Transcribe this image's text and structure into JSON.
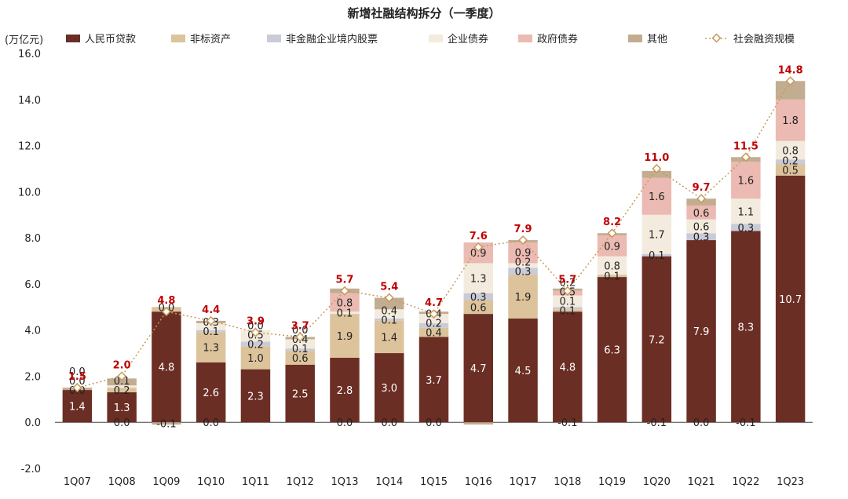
{
  "chart_data": {
    "type": "bar",
    "stacked": true,
    "title": "新增社融结构拆分（一季度）",
    "ylabel": "(万亿元)",
    "ylim": [
      -2.0,
      16.0
    ],
    "yticks": [
      "-2.0",
      "0.0",
      "2.0",
      "4.0",
      "6.0",
      "8.0",
      "10.0",
      "12.0",
      "14.0",
      "16.0"
    ],
    "categories": [
      "1Q07",
      "1Q08",
      "1Q09",
      "1Q10",
      "1Q11",
      "1Q12",
      "1Q13",
      "1Q14",
      "1Q15",
      "1Q16",
      "1Q17",
      "1Q18",
      "1Q19",
      "1Q20",
      "1Q21",
      "1Q22",
      "1Q23"
    ],
    "legend_position": "top",
    "series": [
      {
        "name": "人民币贷款",
        "color": "#6b2e24",
        "label_color": "#ffffff",
        "values": [
          1.4,
          1.3,
          4.8,
          2.6,
          2.3,
          2.5,
          2.8,
          3.0,
          3.7,
          4.7,
          4.5,
          4.8,
          6.3,
          7.2,
          7.9,
          8.3,
          10.7
        ],
        "labels": [
          "1.4",
          "1.3",
          "4.8",
          "2.6",
          "2.3",
          "2.5",
          "2.8",
          "3.0",
          "3.7",
          "4.7",
          "4.5",
          "4.8",
          "6.3",
          "7.2",
          "7.9",
          "8.3",
          "10.7"
        ]
      },
      {
        "name": "非标资产",
        "color": "#dcc39b",
        "label_color": "#222222",
        "values": [
          0.0,
          0.2,
          0.2,
          1.3,
          1.0,
          0.6,
          1.9,
          1.4,
          0.4,
          0.6,
          1.9,
          0.1,
          0.1,
          0.0,
          0.0,
          0.0,
          0.5
        ],
        "labels": [
          "0.0",
          "0.2",
          "",
          "1.3",
          "1.0",
          "0.6",
          "1.9",
          "1.4",
          "0.4",
          "0.6",
          "1.9",
          "0.1",
          "0.1",
          "",
          "",
          "",
          "0.5"
        ]
      },
      {
        "name": "非金融企业境内股票",
        "color": "#c9cbd8",
        "label_color": "#222222",
        "values": [
          0.0,
          0.0,
          0.0,
          0.1,
          0.2,
          0.1,
          0.0,
          0.1,
          0.2,
          0.3,
          0.3,
          0.1,
          0.0,
          0.1,
          0.3,
          0.3,
          0.2
        ],
        "labels": [
          "0.0",
          "",
          "",
          "0.1",
          "0.2",
          "0.1",
          "",
          "0.1",
          "0.2",
          "0.3",
          "0.3",
          "0.1",
          "",
          "0.1",
          "0.3",
          "0.3",
          "0.2"
        ]
      },
      {
        "name": "企业债券",
        "color": "#f3ebdd",
        "label_color": "#222222",
        "values": [
          0.0,
          0.1,
          0.0,
          0.3,
          0.5,
          0.4,
          0.1,
          0.4,
          0.4,
          1.3,
          0.2,
          0.5,
          0.8,
          1.7,
          0.6,
          1.1,
          0.8
        ],
        "labels": [
          "0.0",
          "0.1",
          "0.0",
          "0.3",
          "0.5",
          "0.4",
          "0.1",
          "0.4",
          "0.4",
          "1.3",
          "0.2",
          "0.5",
          "0.8",
          "1.7",
          "0.6",
          "1.1",
          "0.8"
        ]
      },
      {
        "name": "政府债券",
        "color": "#ebbab2",
        "label_color": "#222222",
        "values": [
          0.0,
          0.0,
          0.0,
          0.0,
          0.0,
          0.0,
          0.8,
          0.0,
          0.0,
          0.9,
          0.9,
          0.2,
          0.9,
          1.6,
          0.6,
          1.6,
          1.8
        ],
        "labels": [
          "",
          "",
          "",
          "",
          "0.0",
          "0.0",
          "0.8",
          "",
          "",
          "0.9",
          "0.9",
          "0.2",
          "0.9",
          "1.6",
          "0.6",
          "1.6",
          "1.8"
        ]
      },
      {
        "name": "其他",
        "color": "#c2ad91",
        "label_color": "#222222",
        "values": [
          0.1,
          0.3,
          -0.1,
          0.1,
          0.0,
          0.1,
          0.2,
          0.5,
          0.1,
          -0.1,
          0.1,
          0.1,
          0.1,
          0.3,
          0.3,
          0.2,
          0.8
        ],
        "labels": [
          "",
          "",
          "-0.1",
          "",
          "",
          "",
          "",
          "",
          "",
          "",
          "",
          "",
          "",
          "",
          "",
          "",
          ""
        ]
      }
    ],
    "line_series": {
      "name": "社会融资规模",
      "color": "#c79a5d",
      "values": [
        1.5,
        2.0,
        4.8,
        4.4,
        3.9,
        3.7,
        5.7,
        5.4,
        4.7,
        7.6,
        7.9,
        5.7,
        8.2,
        11.0,
        9.7,
        11.5,
        14.8
      ],
      "labels": [
        "1.5",
        "2.0",
        "4.8",
        "4.4",
        "3.9",
        "3.7",
        "5.7",
        "5.4",
        "4.7",
        "7.6",
        "7.9",
        "5.7",
        "8.2",
        "11.0",
        "9.7",
        "11.5",
        "14.8"
      ],
      "label_color": "#c00000"
    },
    "baseline_labels": [
      "",
      "0.0",
      "",
      "0.0",
      "",
      "",
      "0.0",
      "0.0",
      "0.0",
      "",
      "",
      "-0.1",
      "",
      "-0.1",
      "0.0",
      "-0.1",
      ""
    ]
  }
}
